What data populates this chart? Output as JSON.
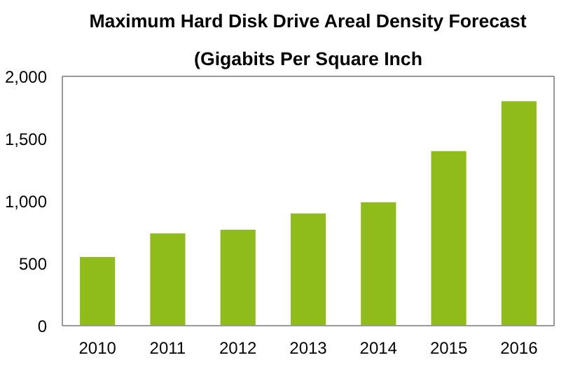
{
  "chart_data": {
    "type": "bar",
    "title": "Maximum Hard Disk Drive Areal Density Forecast",
    "subtitle": "(Gigabits Per Square Inch",
    "categories": [
      "2010",
      "2011",
      "2012",
      "2013",
      "2014",
      "2015",
      "2016"
    ],
    "values": [
      550,
      740,
      770,
      900,
      990,
      1400,
      1800
    ],
    "color": "#8fbc1a",
    "ylim": [
      0,
      2000
    ],
    "yticks": [
      {
        "value": 0,
        "label": "0"
      },
      {
        "value": 500,
        "label": "500"
      },
      {
        "value": 1000,
        "label": "1,000"
      },
      {
        "value": 1500,
        "label": "1,500"
      },
      {
        "value": 2000,
        "label": "2,000"
      }
    ],
    "grid": false
  }
}
